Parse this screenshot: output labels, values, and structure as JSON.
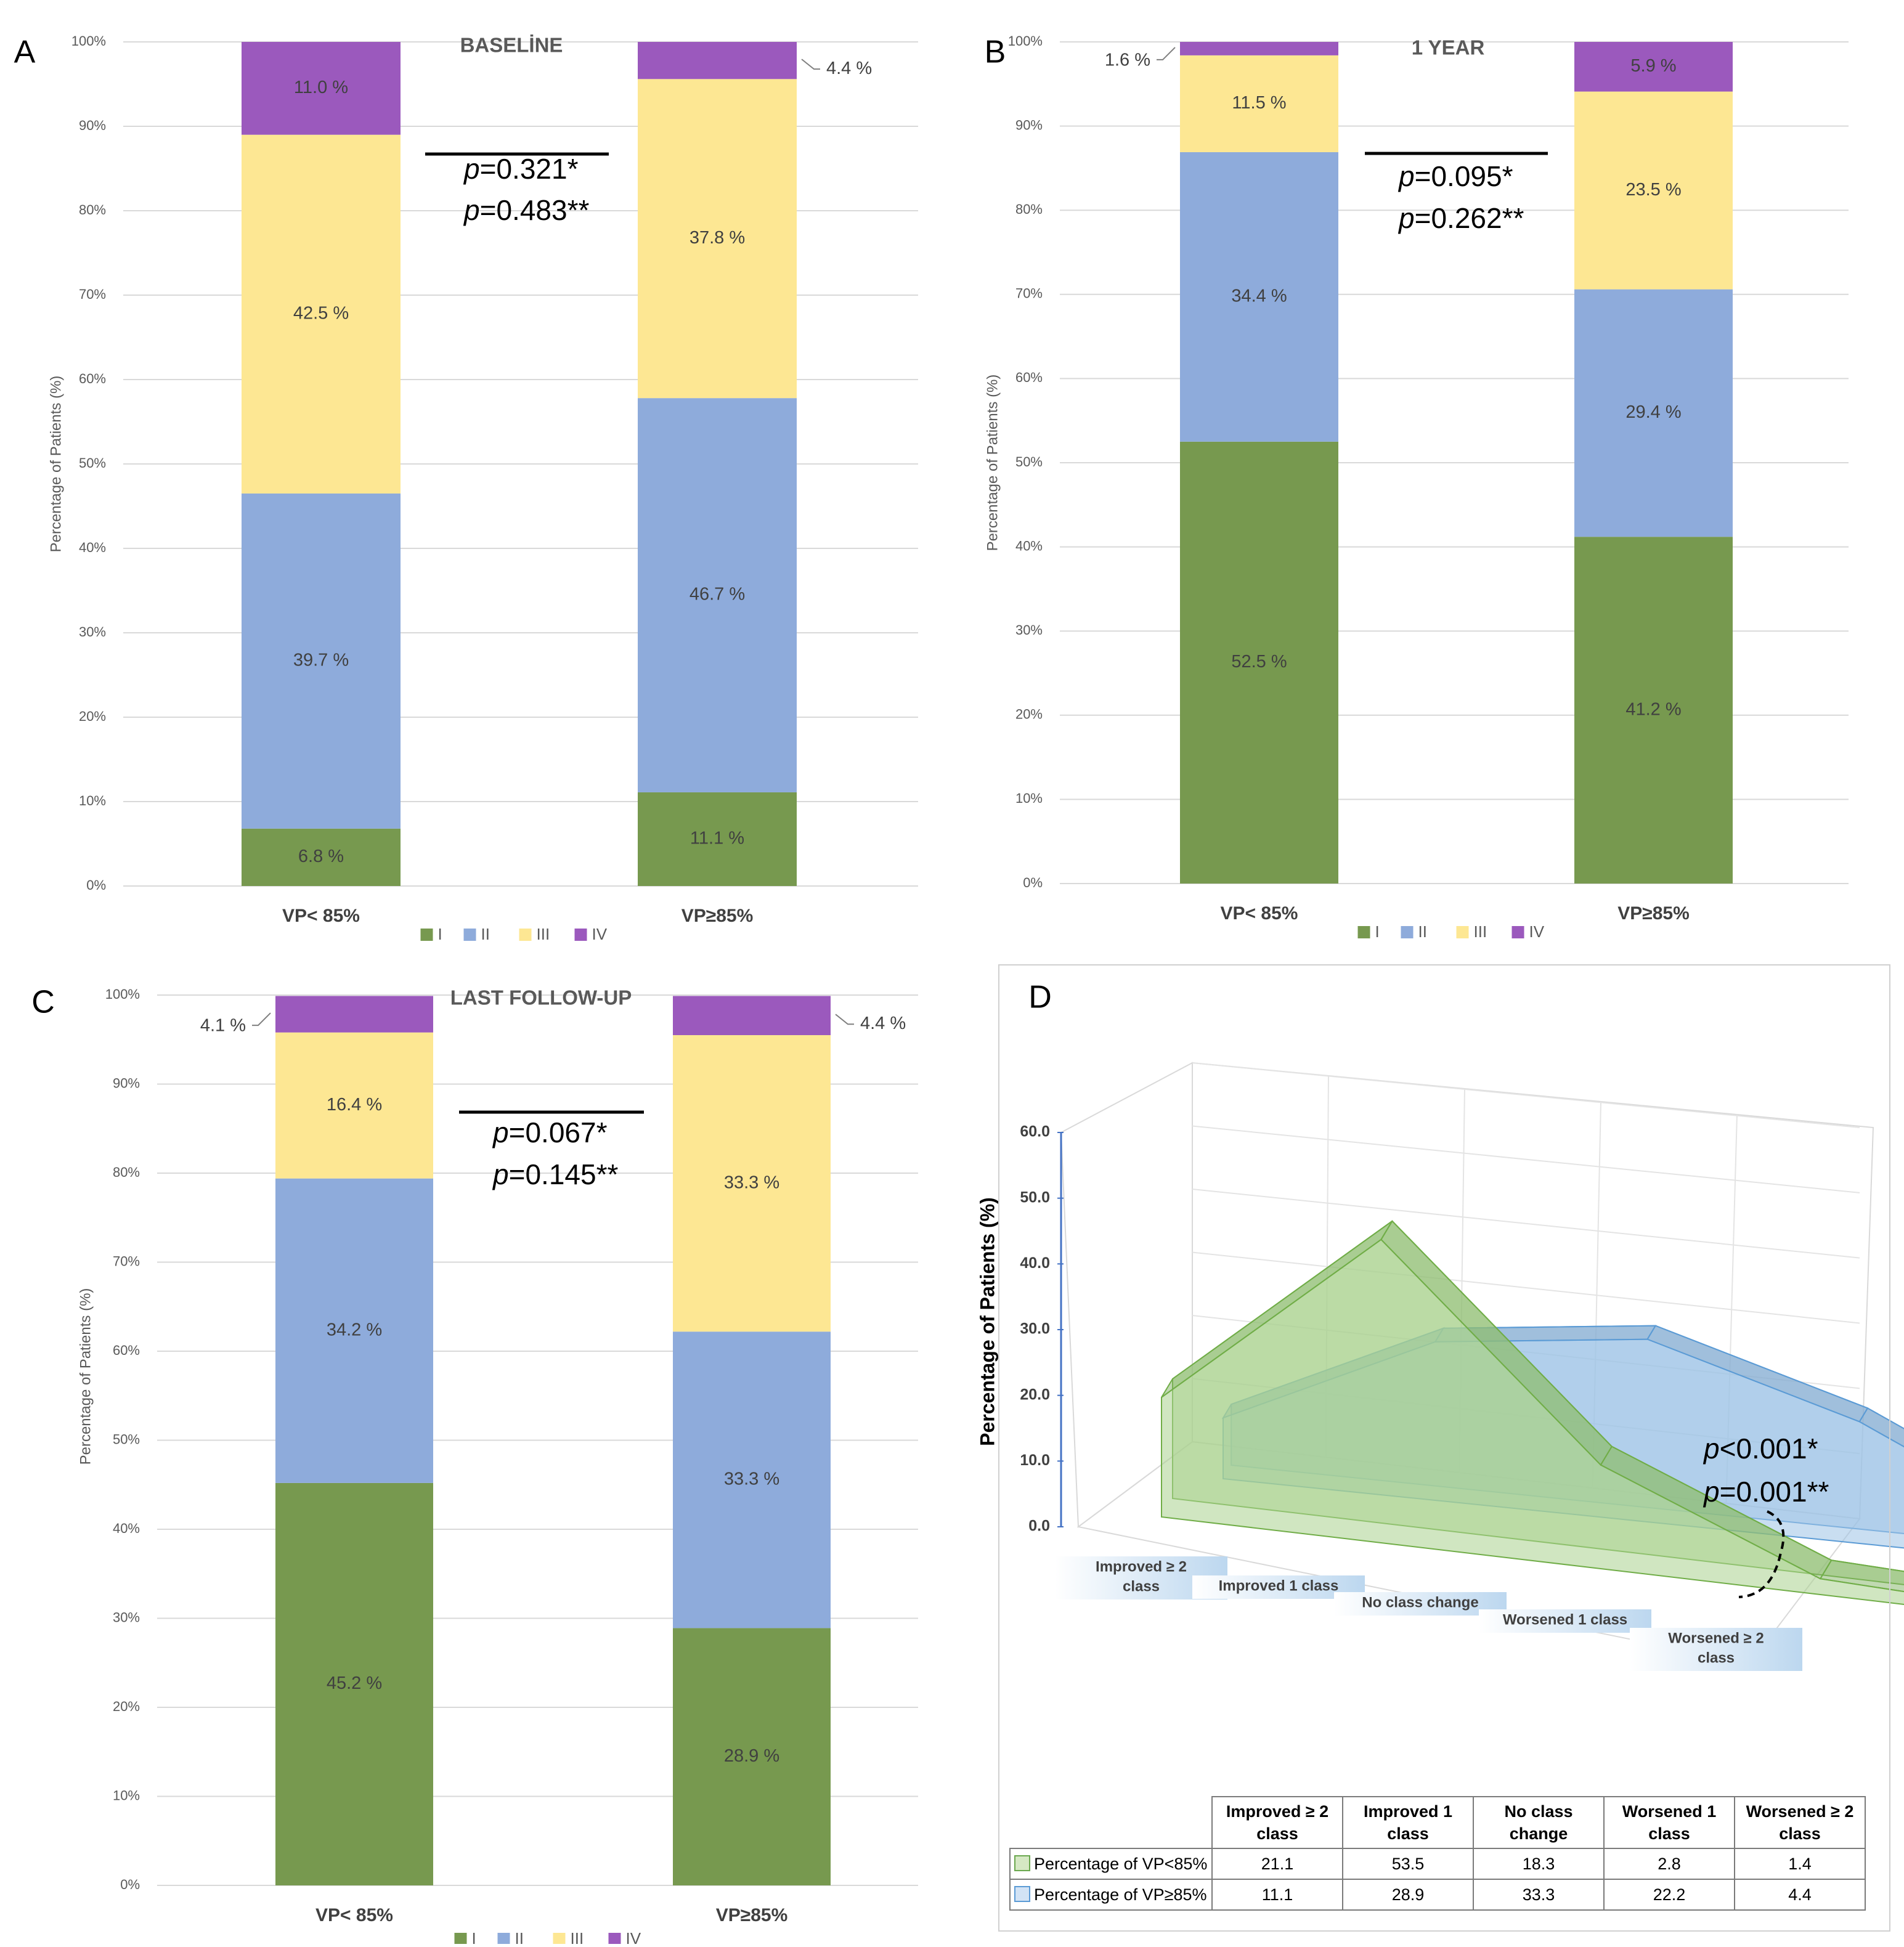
{
  "colors": {
    "I": "#77994f",
    "II": "#8eabdb",
    "III": "#fde793",
    "IV": "#9b59bd",
    "grid": "#d9d9d9",
    "axis_text": "#595959",
    "vp_lt": "#a9d18e",
    "vp_ge": "#9dc3e6"
  },
  "legend": [
    "I",
    "II",
    "III",
    "IV"
  ],
  "panels": {
    "A": {
      "letter": "A",
      "title": "BASELİNE",
      "p1": "=0.321*",
      "p2": "=0.483**",
      "p_italic": "p"
    },
    "B": {
      "letter": "B",
      "title": "1 YEAR",
      "p1": "=0.095*",
      "p2": "=0.262**",
      "p_italic": "p"
    },
    "C": {
      "letter": "C",
      "title": "LAST FOLLOW-UP",
      "p1": "=0.067*",
      "p2": "=0.145**",
      "p_italic": "p"
    },
    "D": {
      "letter": "D",
      "ylabel": "Percentage of Patients (%)",
      "p1": "<0.001*",
      "p2": "=0.001**",
      "p_italic": "p"
    }
  },
  "chart_data": [
    {
      "type": "bar",
      "stacked": true,
      "panel": "A",
      "title": "BASELİNE",
      "categories": [
        "VP< 85%",
        "VP≥85%"
      ],
      "ylabel": "Percentage of Patients (%)",
      "yticks": [
        "0%",
        "10%",
        "20%",
        "30%",
        "40%",
        "50%",
        "60%",
        "70%",
        "80%",
        "90%",
        "100%"
      ],
      "ylim": [
        0,
        100
      ],
      "series": [
        {
          "name": "I",
          "values": [
            6.8,
            11.1
          ],
          "labels": [
            "6.8 %",
            "11.1 %"
          ]
        },
        {
          "name": "II",
          "values": [
            39.7,
            46.7
          ],
          "labels": [
            "39.7 %",
            "46.7 %"
          ]
        },
        {
          "name": "III",
          "values": [
            42.5,
            37.8
          ],
          "labels": [
            "42.5 %",
            "37.8 %"
          ]
        },
        {
          "name": "IV",
          "values": [
            11.0,
            4.4
          ],
          "labels": [
            "11.0 %",
            "4.4 %"
          ]
        }
      ]
    },
    {
      "type": "bar",
      "stacked": true,
      "panel": "B",
      "title": "1 YEAR",
      "categories": [
        "VP< 85%",
        "VP≥85%"
      ],
      "ylabel": "Percentage of Patients (%)",
      "yticks": [
        "0%",
        "10%",
        "20%",
        "30%",
        "40%",
        "50%",
        "60%",
        "70%",
        "80%",
        "90%",
        "100%"
      ],
      "ylim": [
        0,
        100
      ],
      "series": [
        {
          "name": "I",
          "values": [
            52.5,
            41.2
          ],
          "labels": [
            "52.5 %",
            "41.2 %"
          ]
        },
        {
          "name": "II",
          "values": [
            34.4,
            29.4
          ],
          "labels": [
            "34.4 %",
            "29.4 %"
          ]
        },
        {
          "name": "III",
          "values": [
            11.5,
            23.5
          ],
          "labels": [
            "11.5 %",
            "23.5 %"
          ]
        },
        {
          "name": "IV",
          "values": [
            1.6,
            5.9
          ],
          "labels": [
            "1.6 %",
            "5.9 %"
          ]
        }
      ]
    },
    {
      "type": "bar",
      "stacked": true,
      "panel": "C",
      "title": "LAST FOLLOW-UP",
      "categories": [
        "VP< 85%",
        "VP≥85%"
      ],
      "ylabel": "Percentage of Patients (%)",
      "yticks": [
        "0%",
        "10%",
        "20%",
        "30%",
        "40%",
        "50%",
        "60%",
        "70%",
        "80%",
        "90%",
        "100%"
      ],
      "ylim": [
        0,
        100
      ],
      "series": [
        {
          "name": "I",
          "values": [
            45.2,
            28.9
          ],
          "labels": [
            "45.2 %",
            "28.9 %"
          ]
        },
        {
          "name": "II",
          "values": [
            34.2,
            33.3
          ],
          "labels": [
            "34.2 %",
            "33.3 %"
          ]
        },
        {
          "name": "III",
          "values": [
            16.4,
            33.3
          ],
          "labels": [
            "16.4 %",
            "33.3 %"
          ]
        },
        {
          "name": "IV",
          "values": [
            4.1,
            4.4
          ],
          "labels": [
            "4.1 %",
            "4.4 %"
          ]
        }
      ]
    },
    {
      "type": "area",
      "panel": "D",
      "three_d": true,
      "categories": [
        "Improved ≥ 2 class",
        "Improved 1 class",
        "No class change",
        "Worsened 1 class",
        "Worsened ≥ 2 class"
      ],
      "ylabel": "Percentage of Patients (%)",
      "yticks": [
        "0.0",
        "10.0",
        "20.0",
        "30.0",
        "40.0",
        "50.0",
        "60.0"
      ],
      "ylim": [
        0,
        60
      ],
      "series": [
        {
          "name": "Percentage of VP<85%",
          "values": [
            21.1,
            53.5,
            18.3,
            2.8,
            1.4
          ],
          "labels": [
            "21.1",
            "53.5",
            "18.3",
            "2.8",
            "1.4"
          ]
        },
        {
          "name": "Percentage of VP≥85%",
          "values": [
            11.1,
            28.9,
            33.3,
            22.2,
            4.4
          ],
          "labels": [
            "11.1",
            "28.9",
            "33.3",
            "22.2",
            "4.4"
          ]
        }
      ]
    }
  ]
}
